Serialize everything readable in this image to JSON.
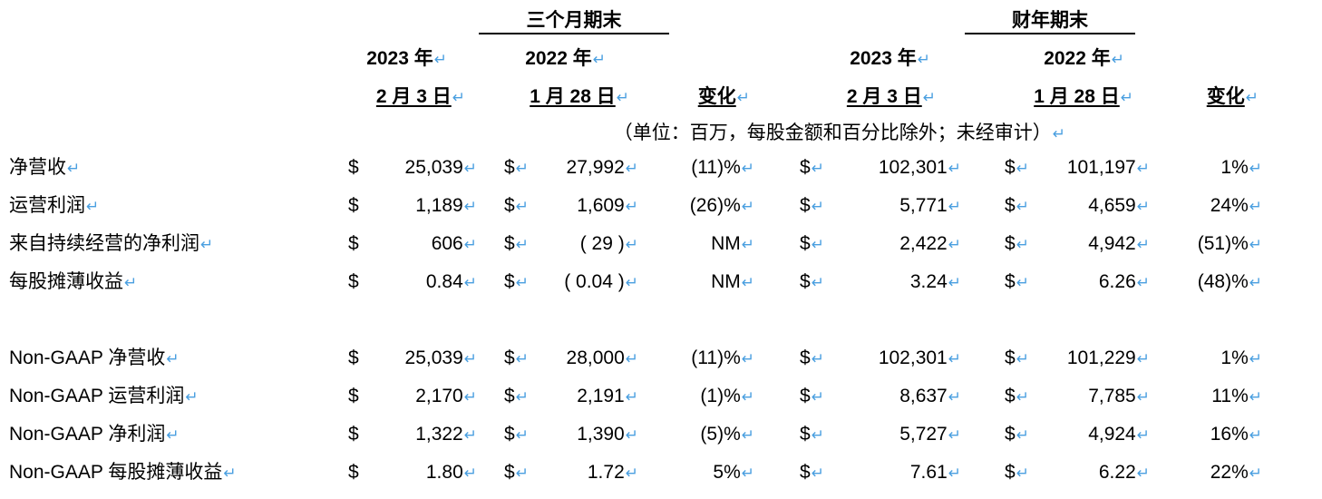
{
  "header": {
    "group_quarter": "三个月期末",
    "group_fy": "财年期末",
    "col_q2023_year": "2023 年",
    "col_q2023_date": "2 月 3 日",
    "col_q2022_year": "2022 年",
    "col_q2022_date": "1 月 28 日",
    "col_q_change": "变化",
    "col_fy2023_year": "2023 年",
    "col_fy2023_date": "2 月 3 日",
    "col_fy2022_year": "2022 年",
    "col_fy2022_date": "1 月 28 日",
    "col_fy_change": "变化",
    "units_note": "（单位：百万，每股金额和百分比除外；未经审计）"
  },
  "mark": "↵",
  "currency": "$",
  "rows": [
    {
      "label": "净营收",
      "q2023": "25,039",
      "q2022": "27,992",
      "qchg": "(11)%",
      "fy2023": "102,301",
      "fy2022": "101,197",
      "fychg": "1%"
    },
    {
      "label": "运营利润",
      "q2023": "1,189",
      "q2022": "1,609",
      "qchg": "(26)%",
      "fy2023": "5,771",
      "fy2022": "4,659",
      "fychg": "24%"
    },
    {
      "label": "来自持续经营的净利润",
      "q2023": "606",
      "q2022": "( 29 )",
      "qchg": "NM",
      "fy2023": "2,422",
      "fy2022": "4,942",
      "fychg": "(51)%"
    },
    {
      "label": "每股摊薄收益",
      "q2023": "0.84",
      "q2022": "( 0.04 )",
      "qchg": "NM",
      "fy2023": "3.24",
      "fy2022": "6.26",
      "fychg": "(48)%"
    },
    {
      "label": "Non-GAAP 净营收",
      "q2023": "25,039",
      "q2022": "28,000",
      "qchg": "(11)%",
      "fy2023": "102,301",
      "fy2022": "101,229",
      "fychg": "1%"
    },
    {
      "label": "Non-GAAP 运营利润",
      "q2023": "2,170",
      "q2022": "2,191",
      "qchg": "(1)%",
      "fy2023": "8,637",
      "fy2022": "7,785",
      "fychg": "11%"
    },
    {
      "label": "Non-GAAP 净利润",
      "q2023": "1,322",
      "q2022": "1,390",
      "qchg": "(5)%",
      "fy2023": "5,727",
      "fy2022": "4,924",
      "fychg": "16%"
    },
    {
      "label": "Non-GAAP 每股摊薄收益",
      "q2023": "1.80",
      "q2022": "1.72",
      "qchg": "5%",
      "fy2023": "7.61",
      "fy2022": "6.22",
      "fychg": "22%"
    }
  ]
}
